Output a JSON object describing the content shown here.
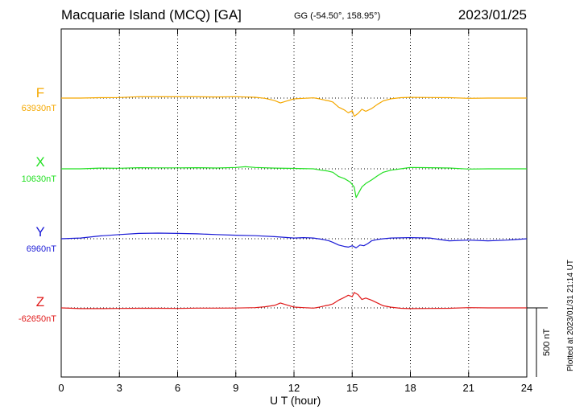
{
  "header": {
    "station": "Macquarie Island (MCQ)  [GA]",
    "coords": "GG (-54.50°, 158.95°)",
    "date": "2023/01/25"
  },
  "footer_note": "Plotted at 2023/01/31 21:14 UT",
  "scale_bar": "500 nT",
  "chart_data": {
    "type": "line",
    "xlabel": "U T (hour)",
    "xlim": [
      0,
      24
    ],
    "xticks": [
      0,
      3,
      6,
      9,
      12,
      15,
      18,
      21,
      24
    ],
    "grid": true,
    "scale_nT": 500,
    "series": [
      {
        "name": "F",
        "baseline": "63930nT",
        "color": "#f5a800",
        "x": [
          0,
          1,
          2,
          3,
          4,
          5,
          6,
          7,
          8,
          9,
          10,
          10.5,
          11,
          11.3,
          11.6,
          12,
          12.5,
          13,
          13.3,
          13.6,
          13.8,
          14,
          14.3,
          14.6,
          14.8,
          15,
          15.1,
          15.3,
          15.5,
          15.7,
          16,
          16.3,
          16.6,
          17,
          17.5,
          18,
          19,
          20,
          21,
          22,
          23,
          24
        ],
        "y": [
          0,
          0,
          3,
          4,
          10,
          9,
          9,
          9,
          8,
          10,
          6,
          -2,
          -18,
          -35,
          -22,
          -6,
          -2,
          2,
          -5,
          -15,
          -20,
          -28,
          -65,
          -85,
          -105,
          -90,
          -130,
          -110,
          -80,
          -95,
          -75,
          -45,
          -20,
          -5,
          3,
          5,
          4,
          3,
          -2,
          0,
          0,
          0
        ]
      },
      {
        "name": "X",
        "baseline": "10630nT",
        "color": "#22e022",
        "x": [
          0,
          1,
          2,
          3,
          4,
          5,
          6,
          7,
          8,
          9,
          9.5,
          10,
          11,
          12,
          13,
          13.4,
          13.7,
          14,
          14.3,
          14.6,
          14.9,
          15.1,
          15.2,
          15.3,
          15.5,
          15.7,
          16,
          16.3,
          16.6,
          17,
          17.5,
          18,
          19,
          20,
          21,
          22,
          23,
          24
        ],
        "y": [
          0,
          0,
          5,
          4,
          8,
          7,
          7,
          8,
          6,
          10,
          15,
          10,
          5,
          3,
          0,
          -10,
          -15,
          -25,
          -55,
          -70,
          -95,
          -130,
          -205,
          -180,
          -130,
          -105,
          -80,
          -50,
          -25,
          -10,
          0,
          10,
          8,
          6,
          -2,
          0,
          0,
          0
        ]
      },
      {
        "name": "Y",
        "baseline": "6960nT",
        "color": "#1a1ad6",
        "x": [
          0,
          1,
          2,
          3,
          4,
          5,
          6,
          7,
          8,
          9,
          10,
          11,
          12,
          12.5,
          13,
          13.5,
          13.8,
          14,
          14.3,
          14.6,
          14.8,
          15,
          15.2,
          15.4,
          15.6,
          15.8,
          16,
          16.3,
          16.6,
          17,
          18,
          19,
          20,
          21,
          22,
          23,
          24
        ],
        "y": [
          0,
          5,
          20,
          30,
          38,
          40,
          38,
          35,
          30,
          25,
          22,
          15,
          5,
          8,
          5,
          -5,
          -15,
          -25,
          -45,
          -55,
          -60,
          -50,
          -65,
          -45,
          -50,
          -35,
          -15,
          -5,
          0,
          5,
          8,
          5,
          -15,
          -10,
          -15,
          -10,
          0
        ]
      },
      {
        "name": "Z",
        "baseline": "-62650nT",
        "color": "#e01a1a",
        "x": [
          0,
          1,
          2,
          3,
          4,
          5,
          6,
          7,
          8,
          9,
          10,
          10.5,
          11,
          11.3,
          11.6,
          12,
          12.5,
          13,
          13.3,
          13.6,
          13.8,
          14,
          14.3,
          14.6,
          14.8,
          15,
          15.1,
          15.3,
          15.5,
          15.7,
          16,
          16.3,
          16.6,
          17,
          17.5,
          18,
          19,
          20,
          21,
          22,
          23,
          24
        ],
        "y": [
          0,
          -5,
          -5,
          -4,
          -3,
          -3,
          -4,
          -2,
          -2,
          -1,
          2,
          8,
          18,
          35,
          22,
          6,
          2,
          -2,
          5,
          15,
          20,
          28,
          55,
          75,
          90,
          80,
          110,
          95,
          60,
          70,
          55,
          35,
          15,
          5,
          -3,
          -5,
          -4,
          -3,
          2,
          0,
          0,
          0
        ]
      }
    ]
  }
}
